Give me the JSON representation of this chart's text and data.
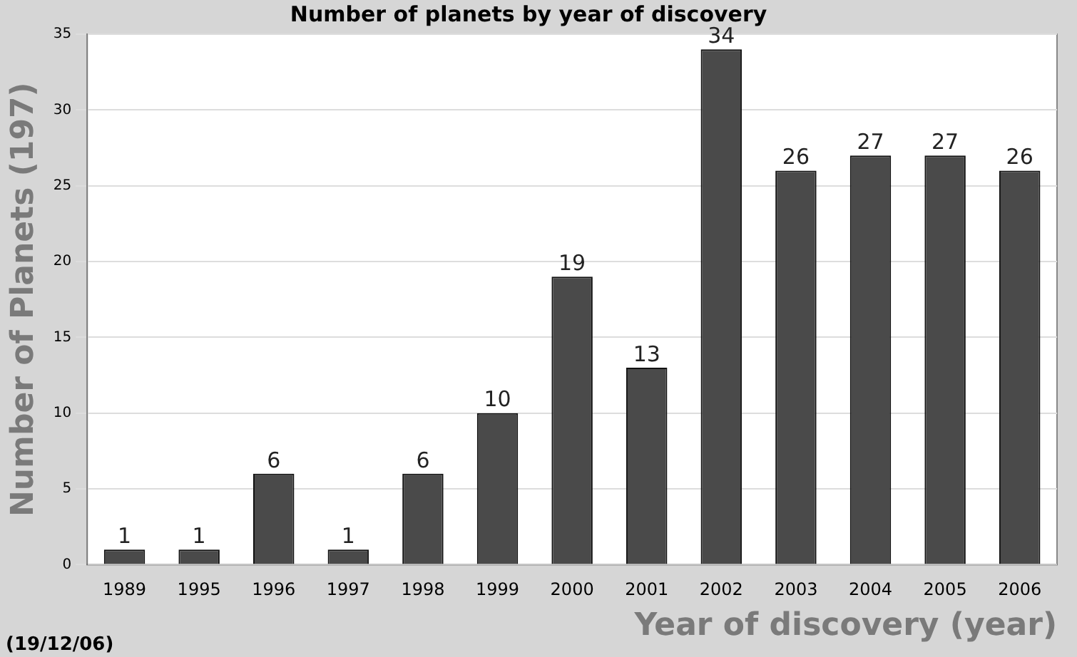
{
  "chart_data": {
    "type": "bar",
    "title": "Number of planets by year of discovery",
    "xlabel": "Year of discovery (year)",
    "ylabel": "Number of Planets (197)",
    "annotations": [
      "(19/12/06)"
    ],
    "categories": [
      "1989",
      "1995",
      "1996",
      "1997",
      "1998",
      "1999",
      "2000",
      "2001",
      "2002",
      "2003",
      "2004",
      "2005",
      "2006"
    ],
    "values": [
      1,
      1,
      6,
      1,
      6,
      10,
      19,
      13,
      34,
      26,
      27,
      27,
      26
    ],
    "color": "#4a4a4a",
    "ylim": [
      0,
      35
    ],
    "yticks": [
      0,
      5,
      10,
      15,
      20,
      25,
      30,
      35
    ],
    "grid": "y",
    "data_labels": true,
    "legend": false
  }
}
